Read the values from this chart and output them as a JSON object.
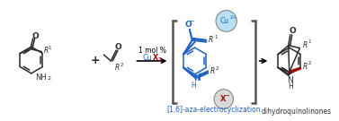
{
  "bg_color": "#ffffff",
  "blue_color": "#2060c0",
  "dark_red_color": "#9b1010",
  "bond_color": "#2a2a2a",
  "bracket_color": "#555555",
  "cu_circle_facecolor": "#b8e0f0",
  "cu_circle_edgecolor": "#888888",
  "x_circle_facecolor": "#d8d8d8",
  "x_circle_edgecolor": "#888888",
  "label_dihydroquinolones": "dihydroquinolinones",
  "label_electrocyclization": "[1,6]-aza-electrocyclization",
  "label_catalyst": "1 mol %",
  "plus_sign": "+",
  "mol1_NH2": "NH",
  "mol1_NH2_sub": "2",
  "mol1_R1": "R",
  "mol1_R1_sup": "1",
  "mol2_R2": "R",
  "mol2_R2_sup": "2",
  "int_R1": "R",
  "int_R1_sub": "1",
  "int_R2": "R",
  "int_R2_sub": "2",
  "prod_R1": "R",
  "prod_R1_sub": "1",
  "prod_R2": "R",
  "prod_R2_sub": "2",
  "fig_width": 3.77,
  "fig_height": 1.35,
  "dpi": 100
}
